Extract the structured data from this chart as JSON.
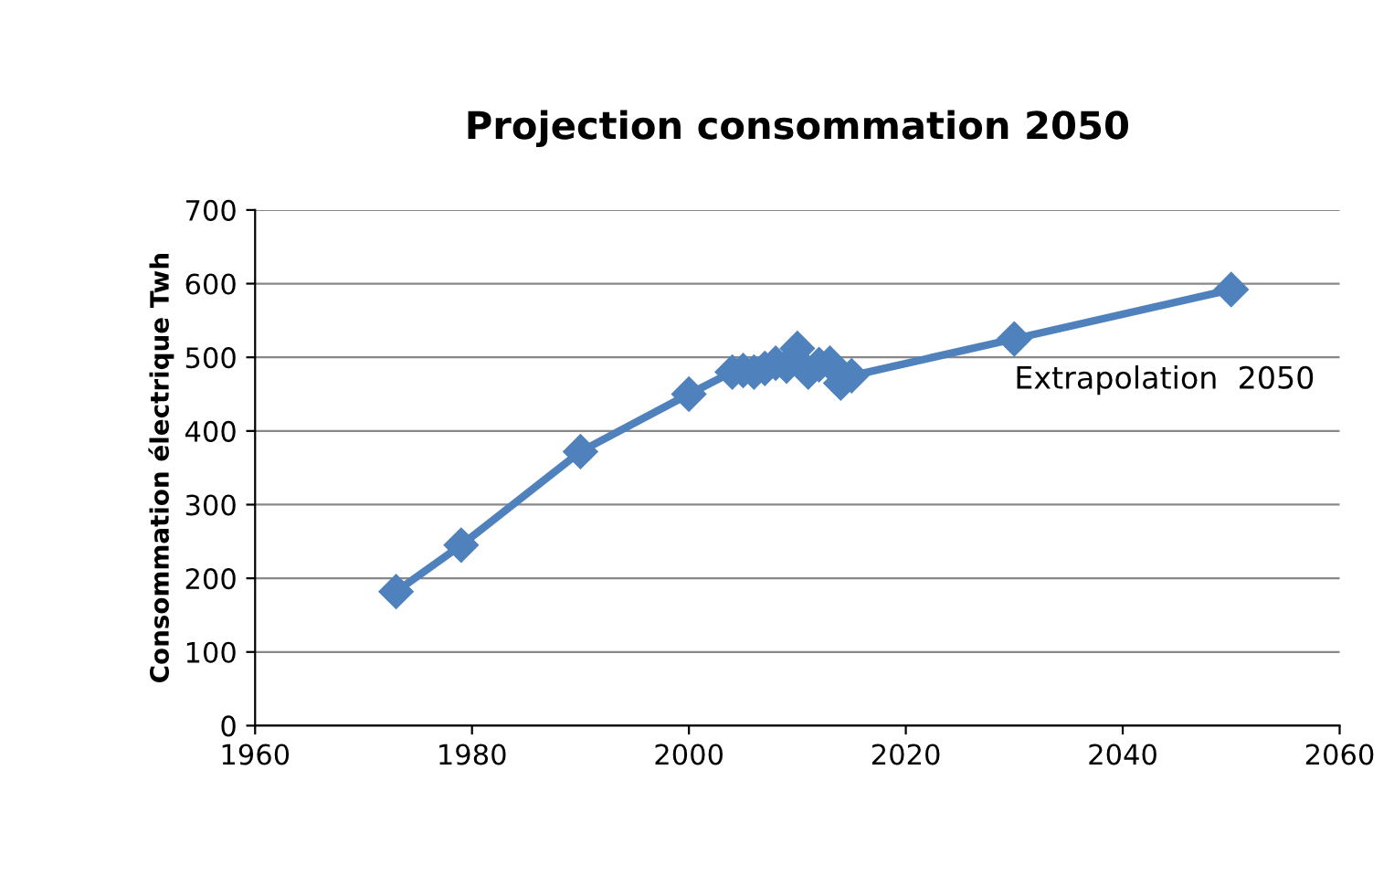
{
  "chart_data": {
    "type": "line",
    "title": "Projection consommation 2050",
    "ylabel": "Consommation électrique Twh",
    "x": [
      1973,
      1979,
      1990,
      2000,
      2004,
      2005,
      2006,
      2007,
      2008,
      2009,
      2010,
      2011,
      2012,
      2013,
      2014,
      2015,
      2030,
      2050
    ],
    "series": [
      {
        "color": "#4f81bd",
        "values": [
          182,
          245,
          372,
          450,
          480,
          482,
          480,
          485,
          492,
          488,
          512,
          480,
          490,
          492,
          465,
          475,
          525,
          592
        ]
      }
    ],
    "xlim": [
      1960,
      2060
    ],
    "xticks": [
      1960,
      1980,
      2000,
      2020,
      2040,
      2060
    ],
    "ylim": [
      0,
      700
    ],
    "yticks": [
      0,
      100,
      200,
      300,
      400,
      500,
      600,
      700
    ],
    "grid": "y",
    "marker": "diamond",
    "line_style": "solid",
    "annotations": [
      "Extrapolation  2050"
    ]
  }
}
